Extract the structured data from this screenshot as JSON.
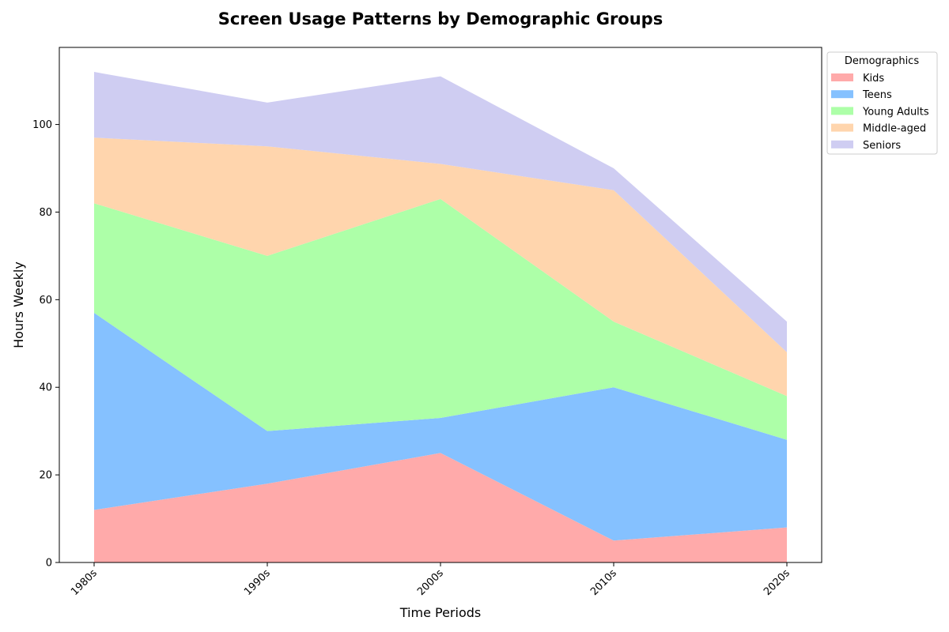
{
  "chart_data": {
    "type": "area",
    "stacked": true,
    "title": "Screen Usage Patterns by Demographic Groups",
    "xlabel": "Time Periods",
    "ylabel": "Hours Weekly",
    "categories": [
      "1980s",
      "1990s",
      "2000s",
      "2010s",
      "2020s"
    ],
    "ylim": [
      0,
      117.6
    ],
    "yticks": [
      0,
      20,
      40,
      60,
      80,
      100
    ],
    "grid": false,
    "legend": {
      "title": "Demographics",
      "placement": "upper-right-outside"
    },
    "series": [
      {
        "name": "Kids",
        "color": "#ffaaaa",
        "values": [
          12,
          18,
          25,
          5,
          8
        ]
      },
      {
        "name": "Teens",
        "color": "#85c1ff",
        "values": [
          45,
          12,
          8,
          35,
          20
        ]
      },
      {
        "name": "Young Adults",
        "color": "#adffa8",
        "values": [
          25,
          40,
          50,
          15,
          10
        ]
      },
      {
        "name": "Middle-aged",
        "color": "#ffd5ad",
        "values": [
          15,
          25,
          8,
          30,
          10
        ]
      },
      {
        "name": "Seniors",
        "color": "#cfcdf2",
        "values": [
          15,
          10,
          20,
          5,
          7
        ]
      }
    ]
  }
}
